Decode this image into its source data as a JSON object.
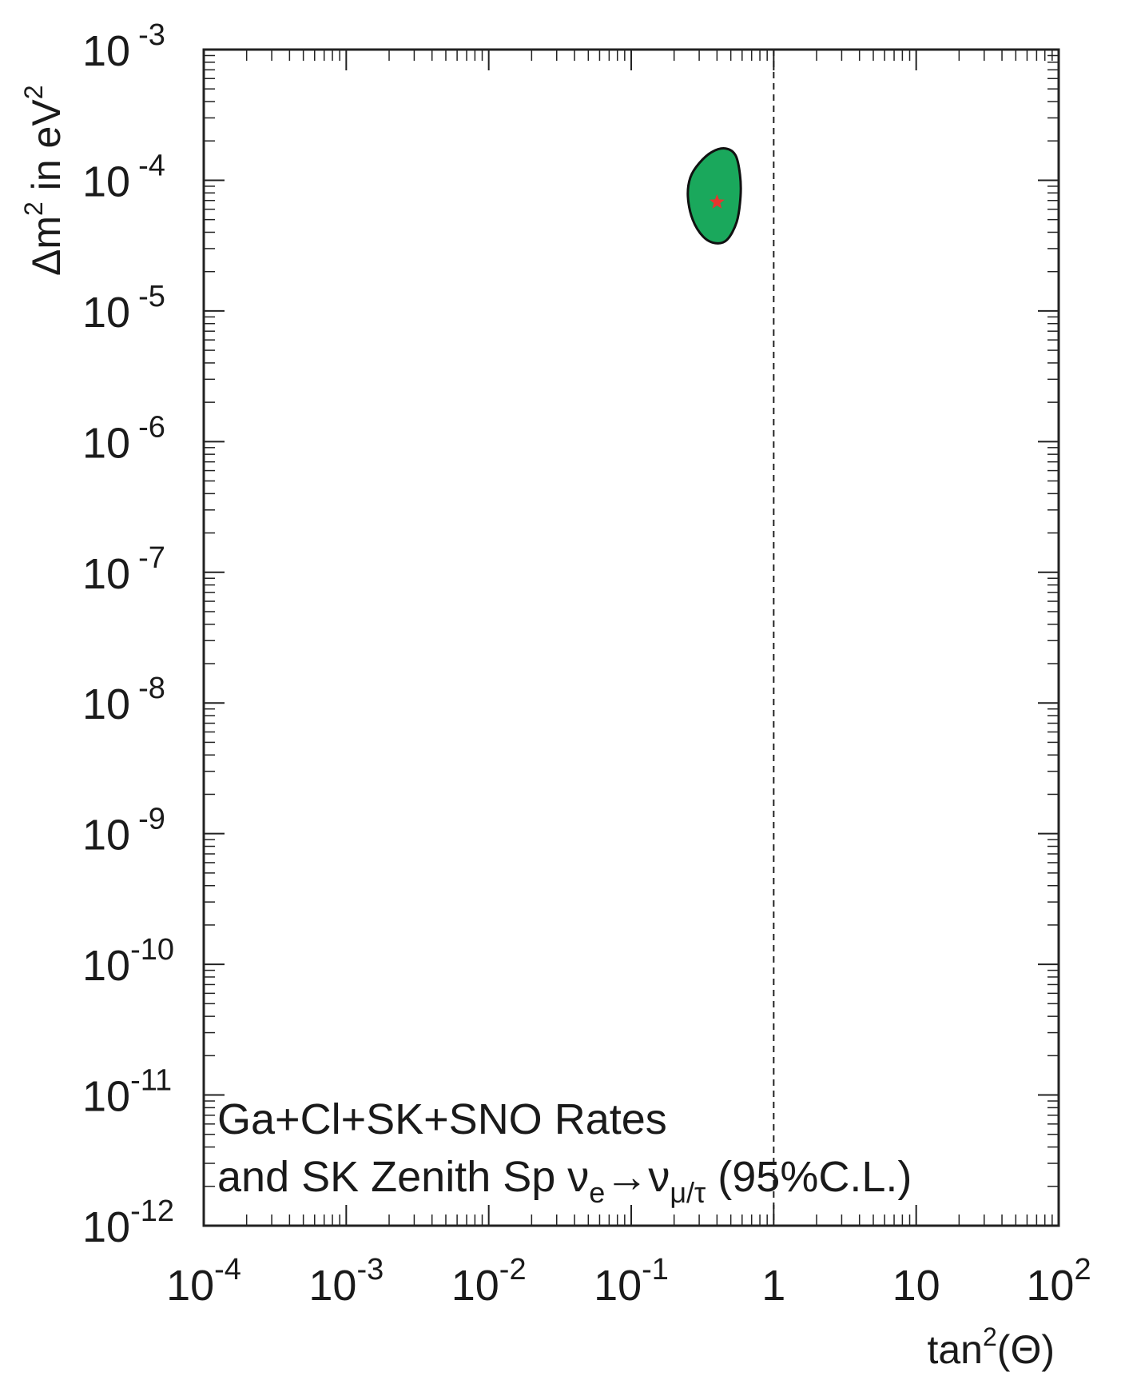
{
  "chart_data": {
    "type": "scatter",
    "x_scale": "log",
    "y_scale": "log",
    "xlim": [
      0.0001,
      100
    ],
    "ylim": [
      1e-12,
      0.001
    ],
    "xlabel": {
      "base": "tan",
      "sup": "2",
      "rest": "(Θ)"
    },
    "ylabel": {
      "pre": "Δm",
      "sup1": "2",
      "mid": " in eV",
      "sup2": "2"
    },
    "x_ticks": [
      {
        "value": 0.0001,
        "base": "10",
        "exp": "-4"
      },
      {
        "value": 0.001,
        "base": "10",
        "exp": "-3"
      },
      {
        "value": 0.01,
        "base": "10",
        "exp": "-2"
      },
      {
        "value": 0.1,
        "base": "10",
        "exp": "-1"
      },
      {
        "value": 1,
        "base": "1",
        "exp": ""
      },
      {
        "value": 10,
        "base": "10",
        "exp": ""
      },
      {
        "value": 100,
        "base": "10",
        "exp": "2"
      }
    ],
    "y_ticks": [
      {
        "value": 0.001,
        "base": "10",
        "exp": "-3"
      },
      {
        "value": 0.0001,
        "base": "10",
        "exp": "-4"
      },
      {
        "value": 1e-05,
        "base": "10",
        "exp": "-5"
      },
      {
        "value": 1e-06,
        "base": "10",
        "exp": "-6"
      },
      {
        "value": 1e-07,
        "base": "10",
        "exp": "-7"
      },
      {
        "value": 1e-08,
        "base": "10",
        "exp": "-8"
      },
      {
        "value": 1e-09,
        "base": "10",
        "exp": "-9"
      },
      {
        "value": 1e-10,
        "base": "10",
        "exp": "-10"
      },
      {
        "value": 1e-11,
        "base": "10",
        "exp": "-11"
      },
      {
        "value": 1e-12,
        "base": "10",
        "exp": "-12"
      }
    ],
    "reference_line": {
      "x": 1,
      "style": "dashed"
    },
    "region": {
      "label": "95% C.L. allowed region",
      "color": "#1aa85c",
      "outline": "#111111",
      "contour": [
        [
          0.3,
          0.000135
        ],
        [
          0.37,
          0.000165
        ],
        [
          0.46,
          0.000175
        ],
        [
          0.54,
          0.000155
        ],
        [
          0.58,
          0.00011
        ],
        [
          0.585,
          7.5e-05
        ],
        [
          0.55,
          4.8e-05
        ],
        [
          0.47,
          3.5e-05
        ],
        [
          0.39,
          3.3e-05
        ],
        [
          0.32,
          3.7e-05
        ],
        [
          0.27,
          5e-05
        ],
        [
          0.25,
          7.5e-05
        ],
        [
          0.26,
          0.000105
        ]
      ]
    },
    "best_fit": {
      "x": 0.4,
      "y": 6.8e-05,
      "marker": "star",
      "color": "#e8352f"
    },
    "annotation": {
      "line1": "Ga+Cl+SK+SNO Rates",
      "line2_text": "and SK Zenith Sp ",
      "nu": "ν",
      "sub_e": "e",
      "arrow": "→",
      "sub_mutau": "μ/τ",
      "cl": " (95%C.L.)"
    }
  }
}
